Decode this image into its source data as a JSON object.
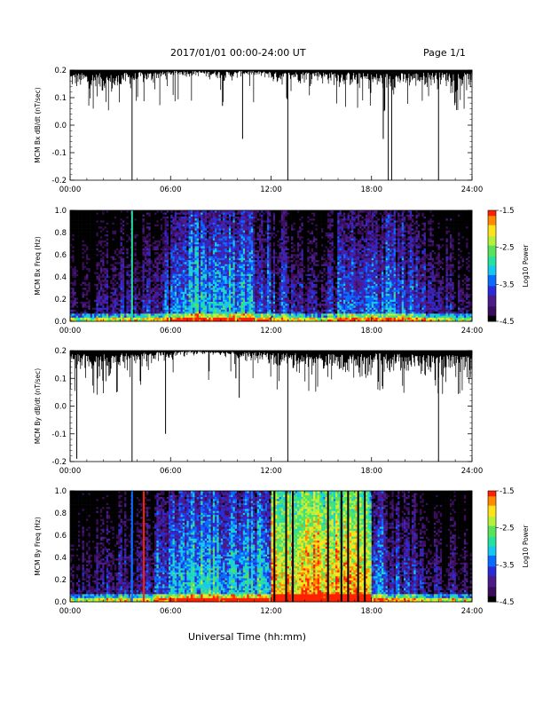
{
  "header": {
    "title": "2017/01/01   00:00-24:00 UT",
    "page": "Page 1/1"
  },
  "x_axis_title": "Universal Time (hh:mm)",
  "chart_data": [
    {
      "type": "line",
      "id": "bx-dbdt",
      "ylabel": "MCM Bx dB/dt (nT/sec)",
      "xlim": [
        0,
        24
      ],
      "ylim": [
        -0.2,
        0.2
      ],
      "x_ticks": [
        "00:00",
        "06:00",
        "12:00",
        "18:00",
        "24:00"
      ],
      "y_ticks": [
        "0.2",
        "0.1",
        "0.0",
        "-0.1",
        "-0.2"
      ],
      "description_values": {
        "baseline_top": 0.2,
        "typical_min_by_hour": [
          0.1,
          0.08,
          0.06,
          0.11,
          0.13,
          0.15,
          0.17,
          0.17,
          0.16,
          0.15,
          0.17,
          0.16,
          0.13,
          0.14,
          0.15,
          0.13,
          0.12,
          0.1,
          0.09,
          0.1,
          0.11,
          0.12,
          0.12,
          0.1
        ],
        "spikes": [
          [
            3.7,
            -0.2
          ],
          [
            13.0,
            -0.2
          ],
          [
            19.0,
            -0.2
          ],
          [
            19.2,
            -0.2
          ],
          [
            22.0,
            -0.2
          ],
          [
            18.7,
            -0.05
          ],
          [
            10.3,
            -0.05
          ],
          [
            9.1,
            0.07
          ]
        ]
      }
    },
    {
      "type": "heatmap",
      "id": "bx-spectrogram",
      "ylabel": "MCM Bx Freq (Hz)",
      "xlim": [
        0,
        24
      ],
      "ylim": [
        0.0,
        1.0
      ],
      "x_ticks": [
        "00:00",
        "06:00",
        "12:00",
        "18:00",
        "24:00"
      ],
      "y_ticks": [
        "1.0",
        "0.8",
        "0.6",
        "0.4",
        "0.2",
        "0.0"
      ],
      "colorbar": {
        "label": "Log10 Power",
        "range": [
          -4.5,
          -1.5
        ],
        "ticks": [
          "-1.5",
          "-2.5",
          "-3.5",
          "-4.5"
        ]
      },
      "power_profile_by_hour": [
        -4.3,
        -4.2,
        -4.1,
        -4.0,
        -3.9,
        -3.6,
        -3.2,
        -3.0,
        -3.0,
        -3.1,
        -3.1,
        -3.3,
        -3.7,
        -3.9,
        -3.9,
        -3.8,
        -3.5,
        -3.3,
        -3.3,
        -3.4,
        -3.6,
        -3.8,
        -4.0,
        -4.2
      ],
      "lines": [
        [
          3.7,
          -2.8
        ]
      ]
    },
    {
      "type": "line",
      "id": "by-dbdt",
      "ylabel": "MCM By dB/dt (nT/sec)",
      "xlim": [
        0,
        24
      ],
      "ylim": [
        -0.2,
        0.2
      ],
      "x_ticks": [
        "00:00",
        "06:00",
        "12:00",
        "18:00",
        "24:00"
      ],
      "y_ticks": [
        "0.2",
        "0.1",
        "0.0",
        "-0.1",
        "-0.2"
      ],
      "description_values": {
        "baseline_top": 0.2,
        "typical_min_by_hour": [
          0.08,
          0.05,
          0.07,
          0.1,
          0.13,
          0.15,
          0.17,
          0.18,
          0.18,
          0.17,
          0.15,
          0.14,
          0.12,
          0.1,
          0.09,
          0.08,
          0.07,
          0.08,
          0.1,
          0.09,
          0.08,
          0.06,
          0.05,
          0.06
        ],
        "spikes": [
          [
            0.4,
            -0.19
          ],
          [
            3.7,
            -0.2
          ],
          [
            13.0,
            -0.2
          ],
          [
            22.0,
            -0.2
          ],
          [
            5.7,
            -0.1
          ],
          [
            10.1,
            0.03
          ],
          [
            9.9,
            0.1
          ]
        ]
      }
    },
    {
      "type": "heatmap",
      "id": "by-spectrogram",
      "ylabel": "MCM By Freq (Hz)",
      "xlim": [
        0,
        24
      ],
      "ylim": [
        0.0,
        1.0
      ],
      "x_ticks": [
        "00:00",
        "06:00",
        "12:00",
        "18:00",
        "24:00"
      ],
      "y_ticks": [
        "1.0",
        "0.8",
        "0.6",
        "0.4",
        "0.2",
        "0.0"
      ],
      "colorbar": {
        "label": "Log10 Power",
        "range": [
          -4.5,
          -1.5
        ],
        "ticks": [
          "-1.5",
          "-2.5",
          "-3.5",
          "-4.5"
        ]
      },
      "power_profile_by_hour": [
        -4.1,
        -4.0,
        -3.9,
        -3.8,
        -3.7,
        -3.3,
        -3.0,
        -2.9,
        -2.9,
        -3.0,
        -3.0,
        -3.0,
        -1.9,
        -1.7,
        -1.7,
        -1.8,
        -1.8,
        -1.9,
        -3.3,
        -3.6,
        -3.8,
        -4.0,
        -4.1,
        -4.2
      ],
      "lines": [
        [
          3.7,
          -3.3
        ],
        [
          4.4,
          -1.6
        ],
        [
          12.2,
          -4.4
        ],
        [
          12.9,
          -4.4
        ],
        [
          13.3,
          -4.4
        ],
        [
          15.4,
          -4.4
        ],
        [
          16.2,
          -4.4
        ],
        [
          16.6,
          -4.4
        ],
        [
          17.2,
          -4.4
        ],
        [
          17.6,
          -4.4
        ]
      ]
    }
  ],
  "colors": {
    "trace": "#000000",
    "colormap": [
      "#000000",
      "#3a0c5a",
      "#4b1b8a",
      "#2a2ad8",
      "#0a6cff",
      "#16c8f0",
      "#27e0a0",
      "#5ae35a",
      "#b6f03a",
      "#ffe21a",
      "#ff8a00",
      "#ff2000"
    ]
  }
}
